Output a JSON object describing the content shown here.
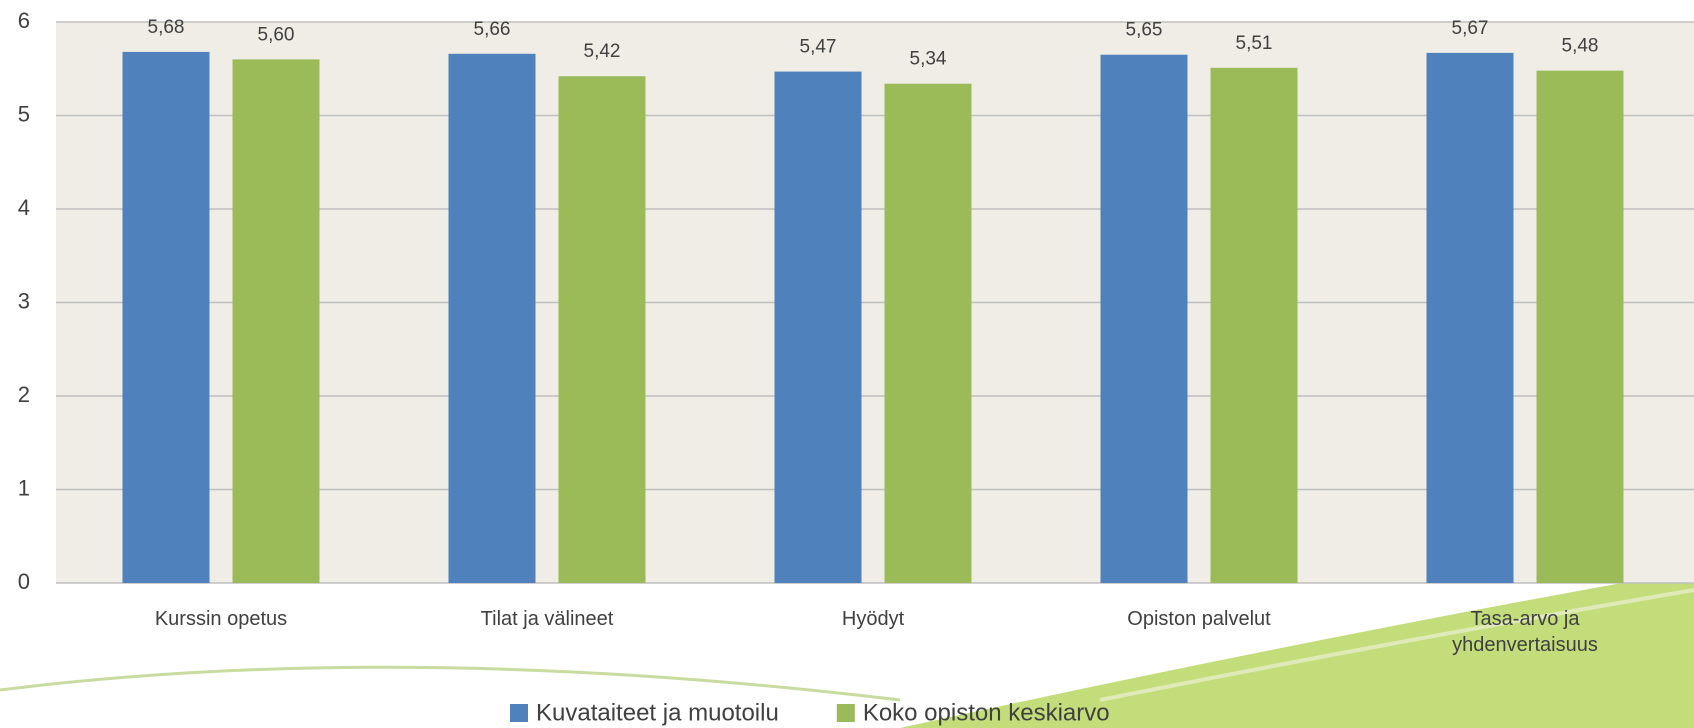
{
  "chart_data": {
    "type": "bar",
    "categories": [
      "Kurssin opetus",
      "Tilat ja välineet",
      "Hyödyt",
      "Opiston palvelut",
      "Tasa-arvo ja yhdenvertaisuus"
    ],
    "series": [
      {
        "name": "Kuvataiteet ja muotoilu",
        "color": "#4f81bd",
        "values": [
          5.68,
          5.66,
          5.47,
          5.65,
          5.67
        ],
        "value_labels": [
          "5,68",
          "5,66",
          "5,47",
          "5,65",
          "5,67"
        ]
      },
      {
        "name": "Koko opiston keskiarvo",
        "color": "#9bbb59",
        "values": [
          5.6,
          5.42,
          5.34,
          5.51,
          5.48
        ],
        "value_labels": [
          "5,60",
          "5,42",
          "5,34",
          "5,51",
          "5,48"
        ]
      }
    ],
    "ylim": [
      0,
      6
    ],
    "yticks": [
      0,
      1,
      2,
      3,
      4,
      5,
      6
    ],
    "grid": true,
    "legend": "bottom"
  }
}
